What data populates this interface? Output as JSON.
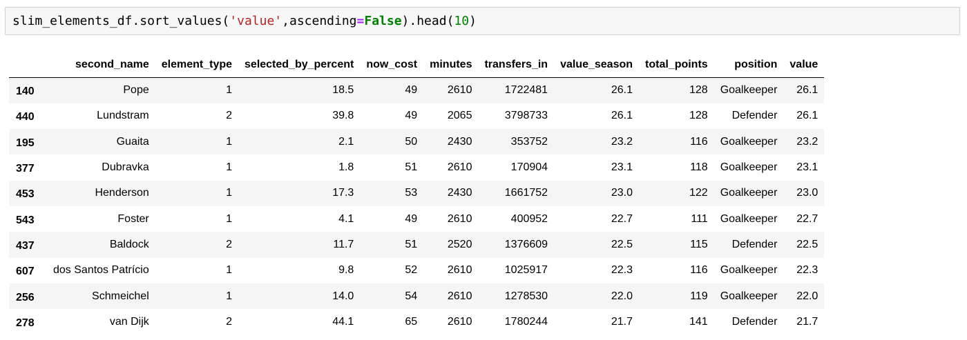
{
  "input_cell": {
    "code_parts": {
      "p1": "slim_elements_df.sort_values(",
      "p2": "'value'",
      "p3": ",ascending",
      "p4": "=",
      "p5": "False",
      "p6": ").head(",
      "p7": "10",
      "p8": ")"
    }
  },
  "table": {
    "columns": [
      "second_name",
      "element_type",
      "selected_by_percent",
      "now_cost",
      "minutes",
      "transfers_in",
      "value_season",
      "total_points",
      "position",
      "value"
    ],
    "rows": [
      {
        "index": "140",
        "cells": [
          "Pope",
          "1",
          "18.5",
          "49",
          "2610",
          "1722481",
          "26.1",
          "128",
          "Goalkeeper",
          "26.1"
        ]
      },
      {
        "index": "440",
        "cells": [
          "Lundstram",
          "2",
          "39.8",
          "49",
          "2065",
          "3798733",
          "26.1",
          "128",
          "Defender",
          "26.1"
        ]
      },
      {
        "index": "195",
        "cells": [
          "Guaita",
          "1",
          "2.1",
          "50",
          "2430",
          "353752",
          "23.2",
          "116",
          "Goalkeeper",
          "23.2"
        ]
      },
      {
        "index": "377",
        "cells": [
          "Dubravka",
          "1",
          "1.8",
          "51",
          "2610",
          "170904",
          "23.1",
          "118",
          "Goalkeeper",
          "23.1"
        ]
      },
      {
        "index": "453",
        "cells": [
          "Henderson",
          "1",
          "17.3",
          "53",
          "2430",
          "1661752",
          "23.0",
          "122",
          "Goalkeeper",
          "23.0"
        ]
      },
      {
        "index": "543",
        "cells": [
          "Foster",
          "1",
          "4.1",
          "49",
          "2610",
          "400952",
          "22.7",
          "111",
          "Goalkeeper",
          "22.7"
        ]
      },
      {
        "index": "437",
        "cells": [
          "Baldock",
          "2",
          "11.7",
          "51",
          "2520",
          "1376609",
          "22.5",
          "115",
          "Defender",
          "22.5"
        ]
      },
      {
        "index": "607",
        "cells": [
          "dos Santos Patrício",
          "1",
          "9.8",
          "52",
          "2610",
          "1025917",
          "22.3",
          "116",
          "Goalkeeper",
          "22.3"
        ]
      },
      {
        "index": "256",
        "cells": [
          "Schmeichel",
          "1",
          "14.0",
          "54",
          "2610",
          "1278530",
          "22.0",
          "119",
          "Goalkeeper",
          "22.0"
        ]
      },
      {
        "index": "278",
        "cells": [
          "van Dijk",
          "2",
          "44.1",
          "65",
          "2610",
          "1780244",
          "21.7",
          "141",
          "Defender",
          "21.7"
        ]
      }
    ]
  },
  "colors": {
    "cell_background": "#f7f7f7",
    "cell_border": "#cfcfcf",
    "string_literal": "#ba2121",
    "operator": "#aa22ff",
    "keyword": "#008000",
    "number_literal": "#008000",
    "striped_row": "#f5f5f5"
  }
}
